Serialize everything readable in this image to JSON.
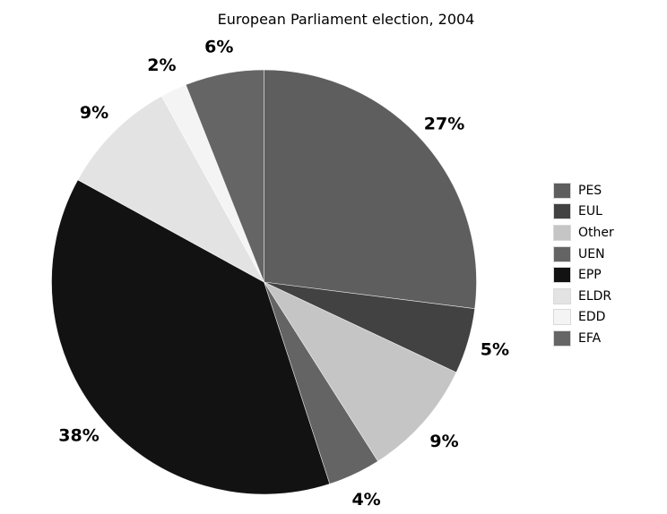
{
  "title": "European Parliament election, 2004",
  "chart_data": {
    "type": "pie",
    "title": "European Parliament election, 2004",
    "unit": "%",
    "start_angle": "12-o-clock",
    "direction": "clockwise",
    "legend_position": "right",
    "background_color": "#ffffff",
    "label_color": "#000000",
    "labels": [
      "PES",
      "EUL",
      "Other",
      "UEN",
      "EPP",
      "ELDR",
      "EDD",
      "EFA"
    ],
    "values": [
      27,
      5,
      9,
      4,
      38,
      9,
      2,
      6
    ],
    "percent_labels": [
      "27%",
      "5%",
      "9%",
      "4%",
      "38%",
      "9%",
      "2%",
      "6%"
    ],
    "colors": [
      "#5e5e5e",
      "#424242",
      "#c5c5c5",
      "#646464",
      "#121212",
      "#e3e3e3",
      "#f4f4f4",
      "#656565"
    ]
  }
}
